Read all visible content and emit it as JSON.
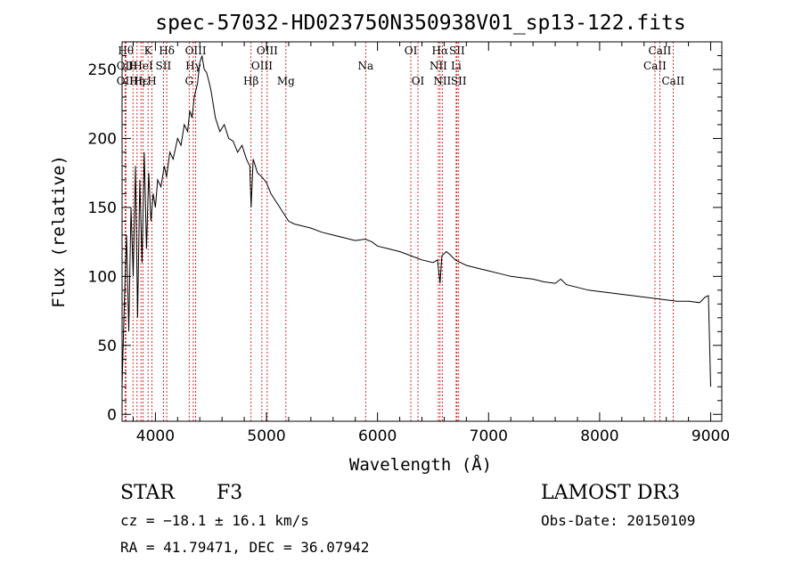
{
  "chart_data": {
    "type": "line",
    "title": "spec-57032-HD023750N350938V01_sp13-122.fits",
    "xlabel": "Wavelength (Å)",
    "ylabel": "Flux (relative)",
    "xlim": [
      3700,
      9100
    ],
    "ylim": [
      -5,
      270
    ],
    "x_ticks": [
      4000,
      5000,
      6000,
      7000,
      8000,
      9000
    ],
    "y_ticks": [
      0,
      50,
      100,
      150,
      200,
      250
    ],
    "grid": false,
    "series": [
      {
        "x": [
          3700,
          3720,
          3740,
          3760,
          3780,
          3800,
          3820,
          3840,
          3860,
          3880,
          3900,
          3920,
          3940,
          3960,
          3980,
          4000,
          4020,
          4050,
          4080,
          4100,
          4130,
          4160,
          4200,
          4230,
          4260,
          4290,
          4310,
          4330,
          4350,
          4380,
          4400,
          4420,
          4440,
          4460,
          4480,
          4500,
          4540,
          4580,
          4620,
          4660,
          4700,
          4740,
          4780,
          4820,
          4850,
          4862,
          4880,
          4920,
          4960,
          5000,
          5040,
          5080,
          5120,
          5160,
          5200,
          5250,
          5300,
          5400,
          5500,
          5600,
          5700,
          5800,
          5890,
          5950,
          6000,
          6100,
          6200,
          6300,
          6400,
          6500,
          6540,
          6563,
          6580,
          6620,
          6650,
          6700,
          6750,
          6800,
          6900,
          7000,
          7100,
          7200,
          7300,
          7400,
          7500,
          7600,
          7650,
          7700,
          7800,
          7900,
          8000,
          8100,
          8200,
          8300,
          8400,
          8500,
          8600,
          8700,
          8800,
          8900,
          8950,
          8980,
          9000
        ],
        "y": [
          20,
          80,
          130,
          60,
          150,
          100,
          180,
          70,
          170,
          110,
          190,
          120,
          175,
          140,
          160,
          150,
          170,
          165,
          180,
          172,
          190,
          185,
          200,
          195,
          210,
          205,
          220,
          215,
          230,
          240,
          255,
          260,
          250,
          248,
          242,
          235,
          215,
          205,
          210,
          200,
          198,
          190,
          195,
          185,
          180,
          150,
          185,
          175,
          172,
          168,
          160,
          155,
          150,
          145,
          140,
          138,
          137,
          135,
          132,
          130,
          128,
          126,
          127,
          125,
          122,
          120,
          118,
          115,
          112,
          110,
          112,
          95,
          115,
          118,
          116,
          112,
          110,
          108,
          106,
          104,
          102,
          100,
          99,
          98,
          96,
          95,
          98,
          94,
          92,
          90,
          89,
          88,
          87,
          86,
          85,
          84,
          83,
          82,
          82,
          81,
          85,
          86,
          20
        ]
      }
    ],
    "line_markers": [
      {
        "wavelength": 3734,
        "labels": [
          {
            "text": "Hθ",
            "row": 1
          }
        ]
      },
      {
        "wavelength": 3727,
        "labels": [
          {
            "text": "OII",
            "row": 2
          },
          {
            "text": "OII",
            "row": 3
          }
        ]
      },
      {
        "wavelength": 3798,
        "labels": [
          {
            "text": "H",
            "row": 2
          }
        ]
      },
      {
        "wavelength": 3835,
        "labels": [
          {
            "text": "Hη",
            "row": 3
          }
        ]
      },
      {
        "wavelength": 3870,
        "labels": [
          {
            "text": "Hε",
            "row": 3
          }
        ]
      },
      {
        "wavelength": 3889,
        "labels": [
          {
            "text": "HeI",
            "row": 2
          }
        ]
      },
      {
        "wavelength": 3934,
        "labels": [
          {
            "text": "K",
            "row": 1
          }
        ]
      },
      {
        "wavelength": 3969,
        "labels": [
          {
            "text": "H",
            "row": 3
          }
        ]
      },
      {
        "wavelength": 4072,
        "labels": [
          {
            "text": "SII",
            "row": 2
          }
        ]
      },
      {
        "wavelength": 4102,
        "labels": [
          {
            "text": "Hδ",
            "row": 1
          }
        ]
      },
      {
        "wavelength": 4304,
        "labels": [
          {
            "text": "G",
            "row": 3
          }
        ]
      },
      {
        "wavelength": 4341,
        "labels": [
          {
            "text": "Hγ",
            "row": 2
          }
        ]
      },
      {
        "wavelength": 4363,
        "labels": [
          {
            "text": "OIII",
            "row": 1
          }
        ]
      },
      {
        "wavelength": 4861,
        "labels": [
          {
            "text": "Hβ",
            "row": 3
          }
        ]
      },
      {
        "wavelength": 4959,
        "labels": [
          {
            "text": "OIII",
            "row": 2
          }
        ]
      },
      {
        "wavelength": 5007,
        "labels": [
          {
            "text": "OIII",
            "row": 1
          }
        ]
      },
      {
        "wavelength": 5175,
        "labels": [
          {
            "text": "Mg",
            "row": 3
          }
        ]
      },
      {
        "wavelength": 5893,
        "labels": [
          {
            "text": "Na",
            "row": 2
          }
        ]
      },
      {
        "wavelength": 6300,
        "labels": [
          {
            "text": "OI",
            "row": 1
          }
        ]
      },
      {
        "wavelength": 6364,
        "labels": [
          {
            "text": "OI",
            "row": 3
          }
        ]
      },
      {
        "wavelength": 6548,
        "labels": [
          {
            "text": "NII",
            "row": 2
          }
        ]
      },
      {
        "wavelength": 6563,
        "labels": [
          {
            "text": "Hα",
            "row": 1
          }
        ]
      },
      {
        "wavelength": 6583,
        "labels": [
          {
            "text": "NII",
            "row": 3
          }
        ]
      },
      {
        "wavelength": 6708,
        "labels": [
          {
            "text": "Li",
            "row": 2
          }
        ]
      },
      {
        "wavelength": 6716,
        "labels": [
          {
            "text": "SII",
            "row": 1
          }
        ]
      },
      {
        "wavelength": 6731,
        "labels": [
          {
            "text": "SII",
            "row": 3
          }
        ]
      },
      {
        "wavelength": 8498,
        "labels": [
          {
            "text": "CaII",
            "row": 2
          }
        ]
      },
      {
        "wavelength": 8542,
        "labels": [
          {
            "text": "CaII",
            "row": 1
          }
        ]
      },
      {
        "wavelength": 8662,
        "labels": [
          {
            "text": "CaII",
            "row": 3
          }
        ]
      }
    ]
  },
  "info": {
    "object_class": "STAR",
    "subclass": "F3",
    "survey": "LAMOST DR3",
    "redshift": "cz = −18.1 ± 16.1 km/s",
    "obs_date": "Obs-Date: 20150109",
    "coords": "RA =  41.79471, DEC =  36.07942"
  },
  "colors": {
    "spectrum": "#000000",
    "line_marker": "#c00000"
  }
}
